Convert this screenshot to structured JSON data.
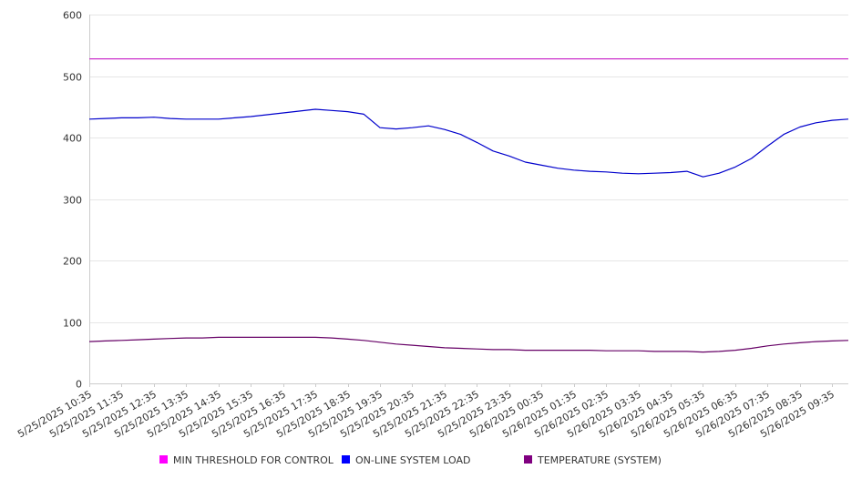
{
  "chart_data": {
    "type": "line",
    "title": "",
    "xlabel": "",
    "ylabel": "",
    "ylim": [
      0,
      600
    ],
    "yticks": [
      0,
      100,
      200,
      300,
      400,
      500,
      600
    ],
    "grid": true,
    "legend_position": "bottom",
    "x_tick_labels": [
      "5/25/2025 10:35",
      "5/25/2025 11:35",
      "5/25/2025 12:35",
      "5/25/2025 13:35",
      "5/25/2025 14:35",
      "5/25/2025 15:35",
      "5/25/2025 16:35",
      "5/25/2025 17:35",
      "5/25/2025 18:35",
      "5/25/2025 19:35",
      "5/25/2025 20:35",
      "5/25/2025 21:35",
      "5/25/2025 22:35",
      "5/25/2025 23:35",
      "5/26/2025 00:35",
      "5/26/2025 01:35",
      "5/26/2025 02:35",
      "5/26/2025 03:35",
      "5/26/2025 04:35",
      "5/26/2025 05:35",
      "5/26/2025 06:35",
      "5/26/2025 07:35",
      "5/26/2025 08:35",
      "5/26/2025 09:35"
    ],
    "x": [
      "5/25/2025 10:35",
      "5/25/2025 11:05",
      "5/25/2025 11:35",
      "5/25/2025 12:05",
      "5/25/2025 12:35",
      "5/25/2025 13:05",
      "5/25/2025 13:35",
      "5/25/2025 14:05",
      "5/25/2025 14:35",
      "5/25/2025 15:05",
      "5/25/2025 15:35",
      "5/25/2025 16:05",
      "5/25/2025 16:35",
      "5/25/2025 17:05",
      "5/25/2025 17:35",
      "5/25/2025 18:05",
      "5/25/2025 18:35",
      "5/25/2025 19:05",
      "5/25/2025 19:35",
      "5/25/2025 20:05",
      "5/25/2025 20:35",
      "5/25/2025 21:05",
      "5/25/2025 21:35",
      "5/25/2025 22:05",
      "5/25/2025 22:35",
      "5/25/2025 23:05",
      "5/25/2025 23:35",
      "5/26/2025 00:05",
      "5/26/2025 00:35",
      "5/26/2025 01:05",
      "5/26/2025 01:35",
      "5/26/2025 02:05",
      "5/26/2025 02:35",
      "5/26/2025 03:05",
      "5/26/2025 03:35",
      "5/26/2025 04:05",
      "5/26/2025 04:35",
      "5/26/2025 05:05",
      "5/26/2025 05:35",
      "5/26/2025 06:05",
      "5/26/2025 06:35",
      "5/26/2025 07:05",
      "5/26/2025 07:35",
      "5/26/2025 08:05",
      "5/26/2025 08:35",
      "5/26/2025 09:05",
      "5/26/2025 09:35",
      "5/26/2025 10:05"
    ],
    "series": [
      {
        "name": "MIN THRESHOLD FOR CONTROL",
        "color": "#cc33cc",
        "legend_color": "#ff00ff",
        "values": [
          528,
          528,
          528,
          528,
          528,
          528,
          528,
          528,
          528,
          528,
          528,
          528,
          528,
          528,
          528,
          528,
          528,
          528,
          528,
          528,
          528,
          528,
          528,
          528,
          528,
          528,
          528,
          528,
          528,
          528,
          528,
          528,
          528,
          528,
          528,
          528,
          528,
          528,
          528,
          528,
          528,
          528,
          528,
          528,
          528,
          528,
          528,
          528
        ]
      },
      {
        "name": "ON-LINE SYSTEM LOAD",
        "color": "#0000cc",
        "legend_color": "#0000ff",
        "values": [
          430,
          431,
          432,
          432,
          433,
          431,
          430,
          430,
          430,
          432,
          434,
          437,
          440,
          443,
          446,
          444,
          442,
          438,
          416,
          414,
          416,
          419,
          413,
          405,
          392,
          378,
          370,
          360,
          355,
          350,
          347,
          345,
          344,
          342,
          341,
          342,
          343,
          345,
          336,
          342,
          352,
          366,
          386,
          405,
          417,
          424,
          428,
          430
        ]
      },
      {
        "name": "TEMPERATURE (SYSTEM)",
        "color": "#660066",
        "legend_color": "#800080",
        "values": [
          68,
          69,
          70,
          71,
          72,
          73,
          74,
          74,
          75,
          75,
          75,
          75,
          75,
          75,
          75,
          74,
          72,
          70,
          67,
          64,
          62,
          60,
          58,
          57,
          56,
          55,
          55,
          54,
          54,
          54,
          54,
          54,
          53,
          53,
          53,
          52,
          52,
          52,
          51,
          52,
          54,
          57,
          61,
          64,
          66,
          68,
          69,
          70
        ]
      }
    ]
  }
}
